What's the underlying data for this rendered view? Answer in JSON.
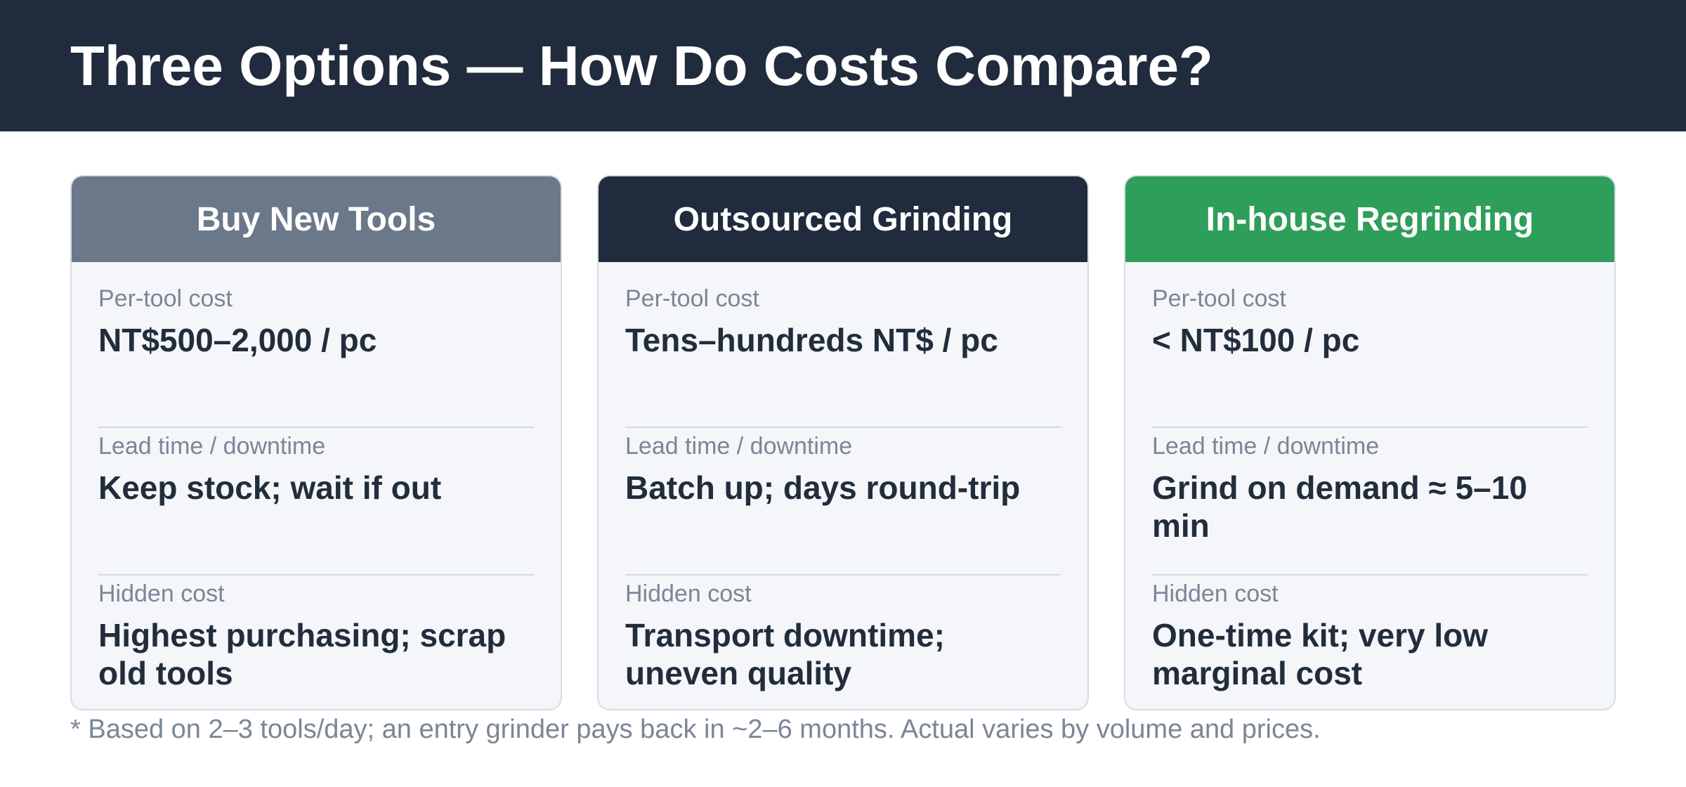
{
  "title": "Three Options — How Do Costs Compare?",
  "colors": {
    "header_bg": "#202c3d",
    "card_bg": "#f4f6f9"
  },
  "cards": [
    {
      "heading": "Buy New Tools",
      "color": "#6b7889",
      "rows": [
        {
          "label": "Per-tool cost",
          "value": "NT$500–2,000 / pc"
        },
        {
          "label": "Lead time / downtime",
          "value": "Keep stock; wait if out"
        },
        {
          "label": "Hidden cost",
          "value": "Highest purchasing; scrap old tools"
        }
      ]
    },
    {
      "heading": "Outsourced Grinding",
      "color": "#202c3d",
      "rows": [
        {
          "label": "Per-tool cost",
          "value": "Tens–hundreds NT$ / pc"
        },
        {
          "label": "Lead time / downtime",
          "value": "Batch up; days round-trip"
        },
        {
          "label": "Hidden cost",
          "value": "Transport downtime; uneven quality"
        }
      ]
    },
    {
      "heading": "In-house Regrinding",
      "color": "#2e9e5b",
      "rows": [
        {
          "label": "Per-tool cost",
          "value": "< NT$100 / pc"
        },
        {
          "label": "Lead time / downtime",
          "value": "Grind on demand ≈ 5–10 min"
        },
        {
          "label": "Hidden cost",
          "value": "One-time kit; very low marginal cost"
        }
      ]
    }
  ],
  "footnote": "* Based on 2–3 tools/day; an entry grinder pays back in ~2–6 months. Actual varies by volume and prices."
}
